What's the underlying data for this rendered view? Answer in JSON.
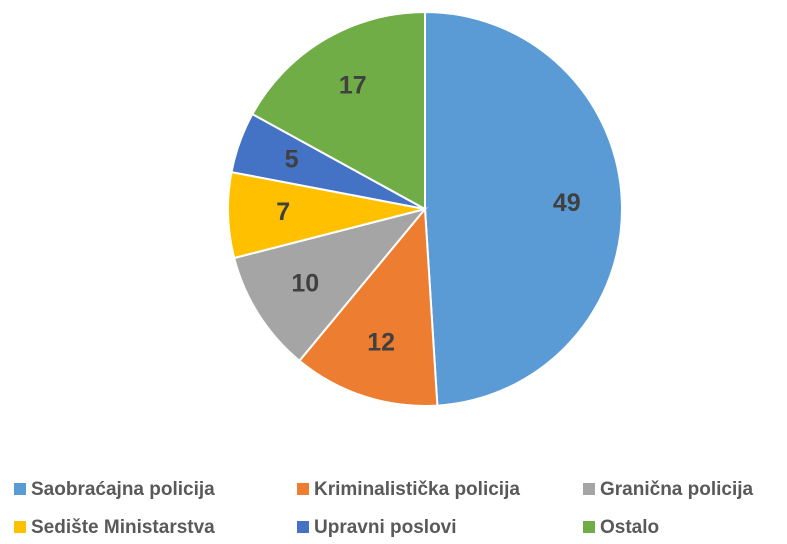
{
  "chart_data": {
    "type": "pie",
    "categories": [
      "Saobraćajna policija",
      "Kriminalistička policija",
      "Granična policija",
      "Sedište Ministarstva",
      "Upravni poslovi",
      "Ostalo"
    ],
    "values": [
      49,
      12,
      10,
      7,
      5,
      17
    ],
    "colors": [
      "#5b9bd5",
      "#ed7d31",
      "#a5a5a5",
      "#ffc000",
      "#4472c4",
      "#70ad47"
    ],
    "legend": "bottom"
  }
}
